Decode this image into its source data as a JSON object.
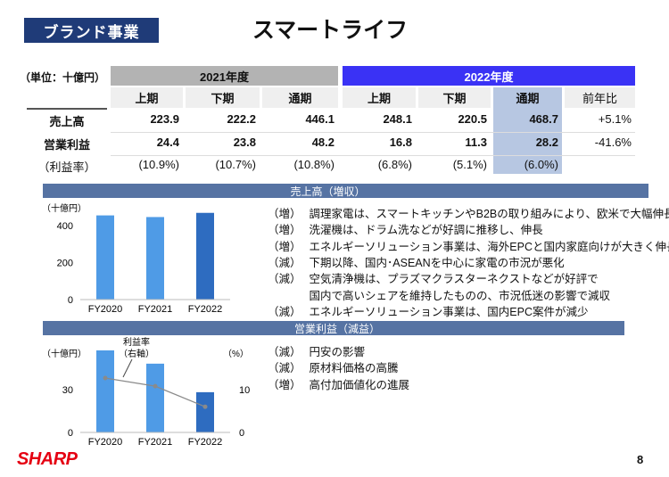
{
  "header": {
    "badge": "ブランド事業",
    "title": "スマートライフ"
  },
  "table": {
    "unit": "（単位：十億円）",
    "fy2021": "2021年度",
    "fy2022": "2022年度",
    "subheaders": [
      "上期",
      "下期",
      "通期",
      "上期",
      "下期",
      "通期",
      "前年比"
    ],
    "rows": [
      {
        "label": "売上高",
        "values": [
          "223.9",
          "222.2",
          "446.1",
          "248.1",
          "220.5",
          "468.7",
          "+5.1%"
        ]
      },
      {
        "label": "営業利益",
        "values": [
          "24.4",
          "23.8",
          "48.2",
          "16.8",
          "11.3",
          "28.2",
          "-41.6%"
        ]
      },
      {
        "label": "（利益率）",
        "values": [
          "(10.9%)",
          "(10.7%)",
          "(10.8%)",
          "(6.8%)",
          "(5.1%)",
          "(6.0%)",
          ""
        ]
      }
    ]
  },
  "sales_section": {
    "title": "売上高（増収）",
    "bullets": [
      {
        "tag": "（増）",
        "lines": [
          "調理家電は、スマートキッチンやB2Bの取り組みにより、欧米で大幅伸長"
        ]
      },
      {
        "tag": "（増）",
        "lines": [
          "洗濯機は、ドラム洗などが好調に推移し、伸長"
        ]
      },
      {
        "tag": "（増）",
        "lines": [
          "エネルギーソリューション事業は、海外EPCと国内家庭向けが大きく伸長"
        ]
      },
      {
        "tag": "（減）",
        "lines": [
          "下期以降、国内･ASEANを中心に家電の市況が悪化"
        ]
      },
      {
        "tag": "（減）",
        "lines": [
          "空気清浄機は、プラズマクラスターネクストなどが好評で",
          "国内で高いシェアを維持したものの、市況低迷の影響で減収"
        ]
      },
      {
        "tag": "（減）",
        "lines": [
          "エネルギーソリューション事業は、国内EPC案件が減少"
        ]
      }
    ]
  },
  "profit_section": {
    "title": "営業利益（減益）",
    "bullets": [
      {
        "tag": "（減）",
        "lines": [
          "円安の影響"
        ]
      },
      {
        "tag": "（減）",
        "lines": [
          "原材料価格の高騰"
        ]
      },
      {
        "tag": "（増）",
        "lines": [
          "高付加価値化の進展"
        ]
      }
    ]
  },
  "chart_data": [
    {
      "type": "bar",
      "title": "売上高",
      "ylabel": "（十億円）",
      "categories": [
        "FY2020",
        "FY2021",
        "FY2022"
      ],
      "values": [
        455,
        446.1,
        468.7
      ],
      "ylim": [
        0,
        480
      ],
      "yticks": [
        "0",
        "200",
        "400"
      ],
      "colors": [
        "#4f9be6",
        "#4f9be6",
        "#2e6cc0"
      ]
    },
    {
      "type": "bar+line",
      "title": "営業利益",
      "ylabel": "（十億円）",
      "y2label": "（%）",
      "categories": [
        "FY2020",
        "FY2021",
        "FY2022"
      ],
      "values": [
        57.5,
        48.2,
        28.2
      ],
      "ylim": [
        0,
        60
      ],
      "yticks": [
        "0",
        "30"
      ],
      "line_series": {
        "name": "利益率（右軸）",
        "values": [
          12.7,
          10.8,
          6.0
        ]
      },
      "y2lim": [
        0,
        20
      ],
      "y2ticks": [
        "0",
        "10"
      ],
      "annotation": [
        "利益率",
        "（右軸）"
      ],
      "colors": [
        "#4f9be6",
        "#4f9be6",
        "#2e6cc0"
      ],
      "line_color": "#8a8a8a"
    }
  ],
  "footer": {
    "logo": "SHARP",
    "page": "8"
  }
}
